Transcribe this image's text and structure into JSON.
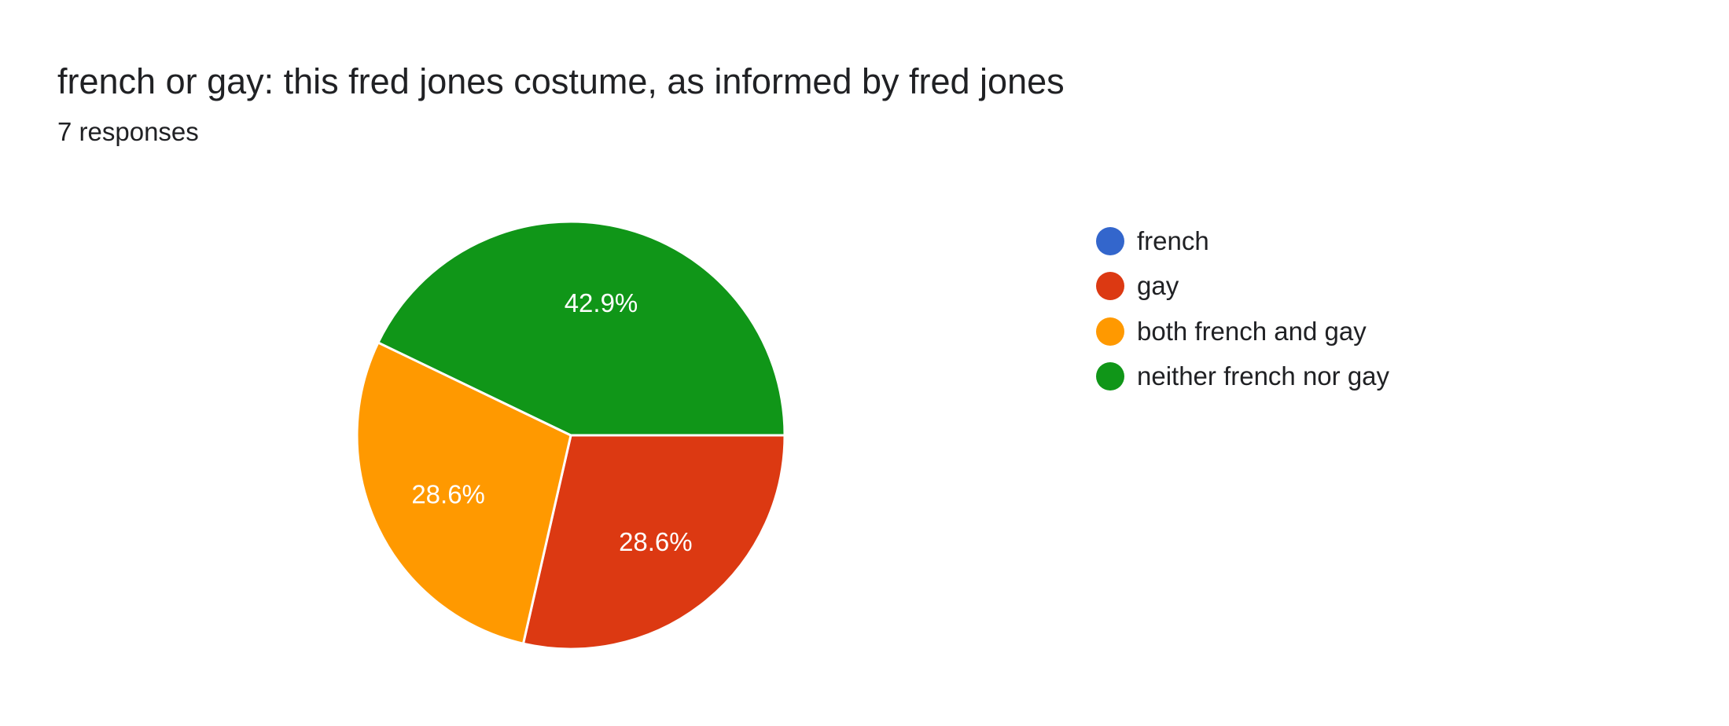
{
  "header": {
    "title": "french or gay: this fred jones costume, as informed by fred jones",
    "responses": "7 responses"
  },
  "chart_data": {
    "type": "pie",
    "total_responses": 7,
    "slices": [
      {
        "label": "french",
        "count": 0,
        "percent": 0,
        "percent_label": "",
        "color": "#3366cc"
      },
      {
        "label": "gay",
        "count": 2,
        "percent": 28.6,
        "percent_label": "28.6%",
        "color": "#dc3912"
      },
      {
        "label": "both french and gay",
        "count": 2,
        "percent": 28.6,
        "percent_label": "28.6%",
        "color": "#ff9900"
      },
      {
        "label": "neither french nor gay",
        "count": 3,
        "percent": 42.9,
        "percent_label": "42.9%",
        "color": "#109618"
      }
    ],
    "legend_position": "right"
  }
}
